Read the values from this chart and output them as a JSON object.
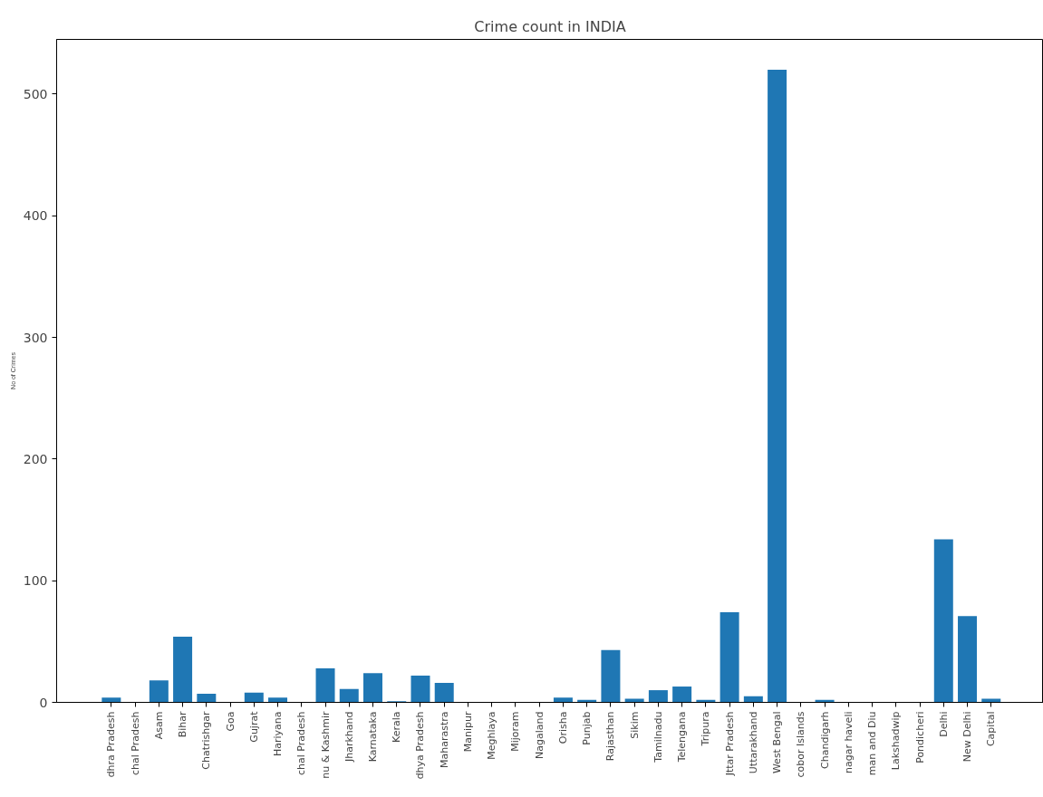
{
  "chart_data": {
    "type": "bar",
    "title": "Crime count in INDIA",
    "ylabel": "No of Crimes",
    "categories": [
      "dhra Pradesh",
      "chal Pradesh",
      "Asam",
      "Bihar",
      "Chatrishgar",
      "Goa",
      "Gujrat",
      "Hariyana",
      "chal Pradesh",
      "nu & Kashmir",
      "Jharkhand",
      "Karnataka",
      "Kerala",
      "dhya Pradesh",
      "Maharastra",
      "Manipur",
      "Meghlaya",
      "Mijoram",
      "Nagaland",
      "Orisha",
      "Punjab",
      "Rajasthan",
      "Sikim",
      "Tamilnadu",
      "Telengana",
      "Tripura",
      "Jttar Pradesh",
      "Uttarakhand",
      "West Bengal",
      "cobor Islands",
      "Chandigarh",
      "nagar haveli",
      "man and Diu",
      "Lakshadwip",
      "Pondicheri",
      "Delhi",
      "New Delhi",
      "Capital"
    ],
    "values": [
      4,
      0,
      18,
      54,
      7,
      0,
      8,
      4,
      0,
      28,
      11,
      24,
      1,
      22,
      16,
      0,
      0,
      0,
      0,
      4,
      2,
      43,
      3,
      10,
      13,
      2,
      74,
      5,
      520,
      0,
      2,
      0,
      0,
      0,
      0,
      134,
      71,
      3
    ],
    "color": "#1f77b4",
    "ylim": [
      0,
      545
    ],
    "yticks": [
      0,
      100,
      200,
      300,
      400,
      500
    ],
    "grid": false
  }
}
